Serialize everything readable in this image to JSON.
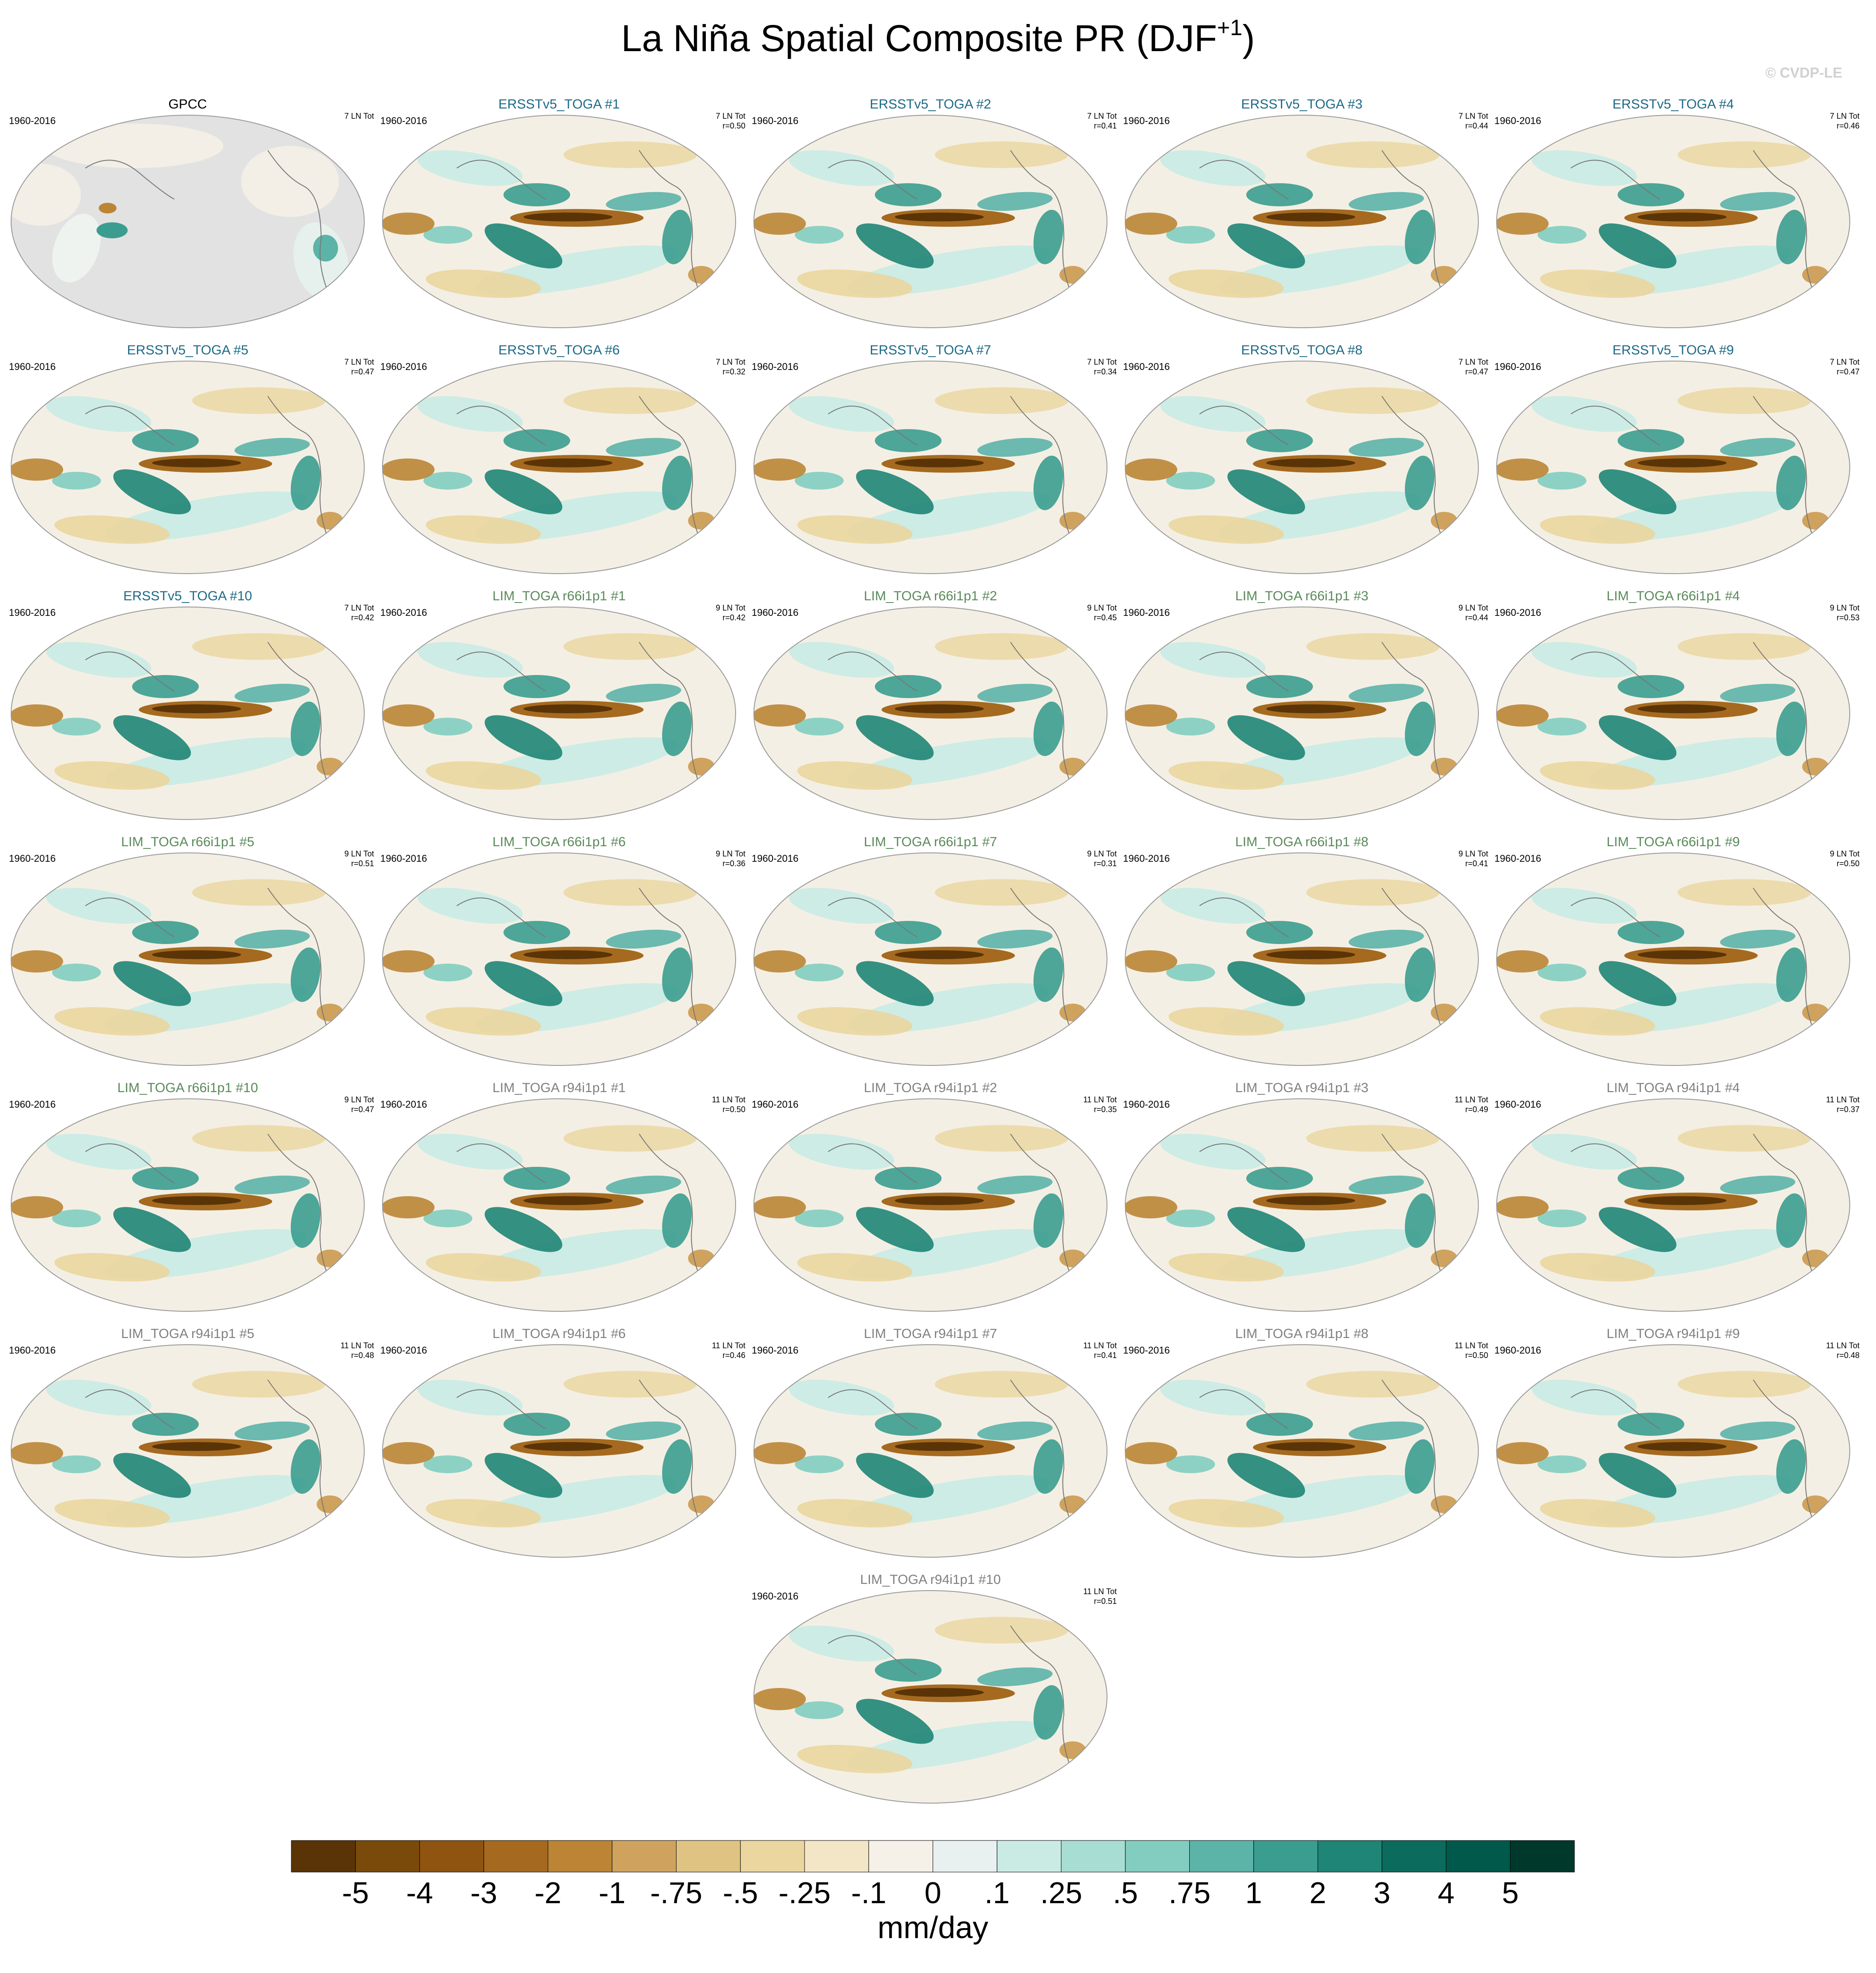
{
  "title": {
    "text": "La Niña Spatial Composite PR (DJF",
    "superscript": "+1",
    "suffix": ")"
  },
  "watermark": "© CVDP-LE",
  "panels": [
    {
      "title": "GPCC",
      "title_color": "#000000",
      "period": "1960-2016",
      "count": "7 LN Tot"
    },
    {
      "title": "ERSSTv5_TOGA #1",
      "title_color": "#1d6a86",
      "period": "1960-2016",
      "count": "7 LN Tot",
      "r": "r=0.50"
    },
    {
      "title": "ERSSTv5_TOGA #2",
      "title_color": "#1d6a86",
      "period": "1960-2016",
      "count": "7 LN Tot",
      "r": "r=0.41"
    },
    {
      "title": "ERSSTv5_TOGA #3",
      "title_color": "#1d6a86",
      "period": "1960-2016",
      "count": "7 LN Tot",
      "r": "r=0.44"
    },
    {
      "title": "ERSSTv5_TOGA #4",
      "title_color": "#1d6a86",
      "period": "1960-2016",
      "count": "7 LN Tot",
      "r": "r=0.46"
    },
    {
      "title": "ERSSTv5_TOGA #5",
      "title_color": "#1d6a86",
      "period": "1960-2016",
      "count": "7 LN Tot",
      "r": "r=0.47"
    },
    {
      "title": "ERSSTv5_TOGA #6",
      "title_color": "#1d6a86",
      "period": "1960-2016",
      "count": "7 LN Tot",
      "r": "r=0.32"
    },
    {
      "title": "ERSSTv5_TOGA #7",
      "title_color": "#1d6a86",
      "period": "1960-2016",
      "count": "7 LN Tot",
      "r": "r=0.34"
    },
    {
      "title": "ERSSTv5_TOGA #8",
      "title_color": "#1d6a86",
      "period": "1960-2016",
      "count": "7 LN Tot",
      "r": "r=0.47"
    },
    {
      "title": "ERSSTv5_TOGA #9",
      "title_color": "#1d6a86",
      "period": "1960-2016",
      "count": "7 LN Tot",
      "r": "r=0.47"
    },
    {
      "title": "ERSSTv5_TOGA #10",
      "title_color": "#1d6a86",
      "period": "1960-2016",
      "count": "7 LN Tot",
      "r": "r=0.42"
    },
    {
      "title": "LIM_TOGA r66i1p1 #1",
      "title_color": "#5a8a5a",
      "period": "1960-2016",
      "count": "9 LN Tot",
      "r": "r=0.42"
    },
    {
      "title": "LIM_TOGA r66i1p1 #2",
      "title_color": "#5a8a5a",
      "period": "1960-2016",
      "count": "9 LN Tot",
      "r": "r=0.45"
    },
    {
      "title": "LIM_TOGA r66i1p1 #3",
      "title_color": "#5a8a5a",
      "period": "1960-2016",
      "count": "9 LN Tot",
      "r": "r=0.44"
    },
    {
      "title": "LIM_TOGA r66i1p1 #4",
      "title_color": "#5a8a5a",
      "period": "1960-2016",
      "count": "9 LN Tot",
      "r": "r=0.53"
    },
    {
      "title": "LIM_TOGA r66i1p1 #5",
      "title_color": "#5a8a5a",
      "period": "1960-2016",
      "count": "9 LN Tot",
      "r": "r=0.51"
    },
    {
      "title": "LIM_TOGA r66i1p1 #6",
      "title_color": "#5a8a5a",
      "period": "1960-2016",
      "count": "9 LN Tot",
      "r": "r=0.36"
    },
    {
      "title": "LIM_TOGA r66i1p1 #7",
      "title_color": "#5a8a5a",
      "period": "1960-2016",
      "count": "9 LN Tot",
      "r": "r=0.31"
    },
    {
      "title": "LIM_TOGA r66i1p1 #8",
      "title_color": "#5a8a5a",
      "period": "1960-2016",
      "count": "9 LN Tot",
      "r": "r=0.41"
    },
    {
      "title": "LIM_TOGA r66i1p1 #9",
      "title_color": "#5a8a5a",
      "period": "1960-2016",
      "count": "9 LN Tot",
      "r": "r=0.50"
    },
    {
      "title": "LIM_TOGA r66i1p1 #10",
      "title_color": "#5a8a5a",
      "period": "1960-2016",
      "count": "9 LN Tot",
      "r": "r=0.47"
    },
    {
      "title": "LIM_TOGA r94i1p1 #1",
      "title_color": "#808080",
      "period": "1960-2016",
      "count": "11 LN Tot",
      "r": "r=0.50"
    },
    {
      "title": "LIM_TOGA r94i1p1 #2",
      "title_color": "#808080",
      "period": "1960-2016",
      "count": "11 LN Tot",
      "r": "r=0.35"
    },
    {
      "title": "LIM_TOGA r94i1p1 #3",
      "title_color": "#808080",
      "period": "1960-2016",
      "count": "11 LN Tot",
      "r": "r=0.49"
    },
    {
      "title": "LIM_TOGA r94i1p1 #4",
      "title_color": "#808080",
      "period": "1960-2016",
      "count": "11 LN Tot",
      "r": "r=0.37"
    },
    {
      "title": "LIM_TOGA r94i1p1 #5",
      "title_color": "#808080",
      "period": "1960-2016",
      "count": "11 LN Tot",
      "r": "r=0.48"
    },
    {
      "title": "LIM_TOGA r94i1p1 #6",
      "title_color": "#808080",
      "period": "1960-2016",
      "count": "11 LN Tot",
      "r": "r=0.46"
    },
    {
      "title": "LIM_TOGA r94i1p1 #7",
      "title_color": "#808080",
      "period": "1960-2016",
      "count": "11 LN Tot",
      "r": "r=0.41"
    },
    {
      "title": "LIM_TOGA r94i1p1 #8",
      "title_color": "#808080",
      "period": "1960-2016",
      "count": "11 LN Tot",
      "r": "r=0.50"
    },
    {
      "title": "LIM_TOGA r94i1p1 #9",
      "title_color": "#808080",
      "period": "1960-2016",
      "count": "11 LN Tot",
      "r": "r=0.48"
    },
    {
      "title": "LIM_TOGA r94i1p1 #10",
      "title_color": "#808080",
      "period": "1960-2016",
      "count": "11 LN Tot",
      "r": "r=0.51"
    }
  ],
  "colorbar": {
    "labels": [
      "-5",
      "-4",
      "-3",
      "-2",
      "-1",
      "-.75",
      "-.5",
      "-.25",
      "-.1",
      "0",
      ".1",
      ".25",
      ".5",
      ".75",
      "1",
      "2",
      "3",
      "4",
      "5"
    ],
    "colors": [
      "#5a3406",
      "#7a4a0a",
      "#8e5410",
      "#a56a1f",
      "#bb8535",
      "#cfa35e",
      "#dfc383",
      "#ead69e",
      "#f2e6c6",
      "#f5f1e8",
      "#e8f1ef",
      "#c9ebe4",
      "#a7ddd3",
      "#82cdc0",
      "#5cb3a8",
      "#3b9d8f",
      "#1f8576",
      "#0b6b5c",
      "#00594a",
      "#00392c"
    ],
    "unit": "mm/day"
  }
}
